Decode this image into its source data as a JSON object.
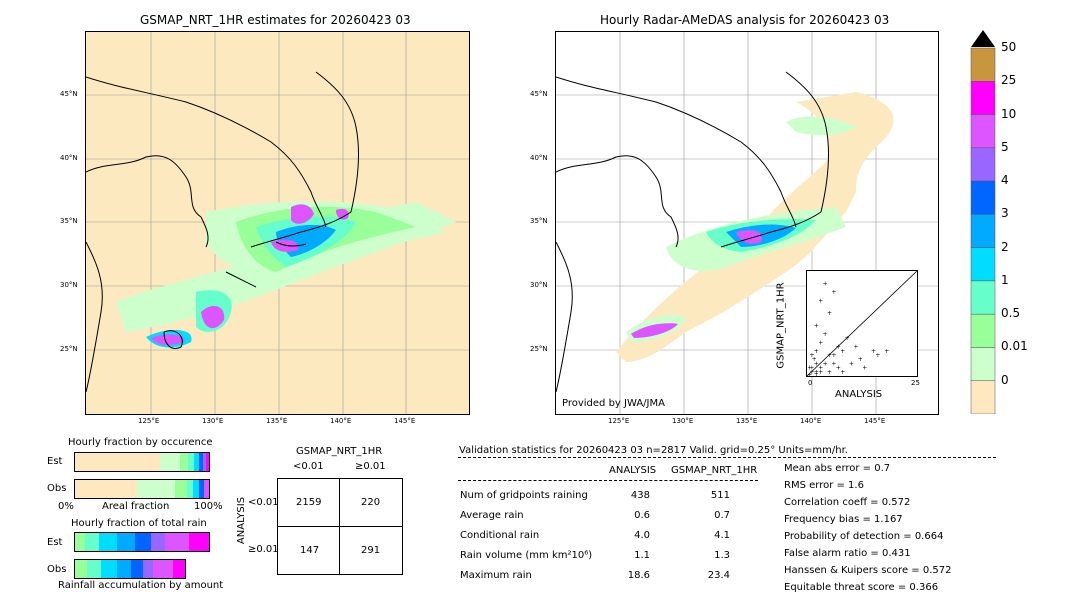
{
  "left_map": {
    "title": "GSMAP_NRT_1HR estimates for 20260423 03",
    "lat_labels": [
      "45°N",
      "40°N",
      "35°N",
      "30°N",
      "25°N"
    ],
    "lon_labels": [
      "125°E",
      "130°E",
      "135°E",
      "140°E",
      "145°E"
    ]
  },
  "right_map": {
    "title": "Hourly Radar-AMeDAS analysis for 20260423 03",
    "lat_labels": [
      "45°N",
      "40°N",
      "35°N",
      "30°N",
      "25°N"
    ],
    "lon_labels": [
      "125°E",
      "130°E",
      "135°E",
      "140°E",
      "145°E"
    ],
    "credit": "Provided by JWA/JMA"
  },
  "colorbar": {
    "labels": [
      "50",
      "25",
      "10",
      "5",
      "4",
      "3",
      "2",
      "1",
      "0.5",
      "0.01",
      "0"
    ],
    "colors": [
      "#c8963c",
      "#ff00ff",
      "#dd55ff",
      "#9966ff",
      "#0066ff",
      "#00aaff",
      "#00ddff",
      "#66ffcc",
      "#99ff99",
      "#ccffcc",
      "#ffe8c0"
    ],
    "top_color": "#000000"
  },
  "inset_scatter": {
    "xlabel": "ANALYSIS",
    "ylabel": "GSMAP_NRT_1HR",
    "ticks": [
      "0",
      "5",
      "10",
      "15",
      "20",
      "25"
    ]
  },
  "occurrence": {
    "title": "Hourly fraction by occurence",
    "est_label": "Est",
    "obs_label": "Obs",
    "axis_left": "0%",
    "axis_mid": "Areal fraction",
    "axis_right": "100%"
  },
  "total_rain": {
    "title": "Hourly fraction of total rain",
    "est_label": "Est",
    "obs_label": "Obs",
    "footer": "Rainfall accumulation by amount"
  },
  "contingency": {
    "title": "GSMAP_NRT_1HR",
    "col1": "<0.01",
    "col2": "≥0.01",
    "row_axis": "ANALYSIS",
    "row1": "<0.01",
    "row2": "≥0.01",
    "cells": [
      "2159",
      "220",
      "147",
      "291"
    ]
  },
  "validation": {
    "header": "Validation statistics for 20260423 03  n=2817 Valid. grid=0.25° Units=mm/hr.",
    "col_analysis": "ANALYSIS",
    "col_gsmap": "GSMAP_NRT_1HR",
    "rows": [
      {
        "label": "Num of gridpoints raining",
        "a": "438",
        "g": "511"
      },
      {
        "label": "Average rain",
        "a": "0.6",
        "g": "0.7"
      },
      {
        "label": "Conditional rain",
        "a": "4.0",
        "g": "4.1"
      },
      {
        "label": "Rain volume (mm km²10⁶)",
        "a": "1.1",
        "g": "1.3"
      },
      {
        "label": "Maximum rain",
        "a": "18.6",
        "g": "23.4"
      }
    ],
    "scores": [
      "Mean abs error =    0.7",
      "RMS error =    1.6",
      "Correlation coeff =  0.572",
      "Frequency bias =  1.167",
      "Probability of detection =  0.664",
      "False alarm ratio =  0.431",
      "Hanssen & Kuipers score =  0.572",
      "Equitable threat score =  0.366"
    ]
  },
  "chart_data": [
    {
      "type": "table",
      "title": "Validation statistics for 20260423 03  n=2817 Valid. grid=0.25° Units=mm/hr.",
      "columns": [
        "",
        "ANALYSIS",
        "GSMAP_NRT_1HR"
      ],
      "rows": [
        [
          "Num of gridpoints raining",
          438,
          511
        ],
        [
          "Average rain",
          0.6,
          0.7
        ],
        [
          "Conditional rain",
          4.0,
          4.1
        ],
        [
          "Rain volume (mm km²10⁶)",
          1.1,
          1.3
        ],
        [
          "Maximum rain",
          18.6,
          23.4
        ]
      ]
    },
    {
      "type": "table",
      "title": "GSMAP_NRT_1HR",
      "columns": [
        "",
        "<0.01",
        "≥0.01"
      ],
      "rows": [
        [
          "<0.01",
          2159,
          220
        ],
        [
          "≥0.01",
          147,
          291
        ]
      ]
    },
    {
      "type": "scatter",
      "xlabel": "ANALYSIS",
      "ylabel": "GSMAP_NRT_1HR",
      "xlim": [
        0,
        25
      ],
      "ylim": [
        0,
        25
      ]
    }
  ]
}
